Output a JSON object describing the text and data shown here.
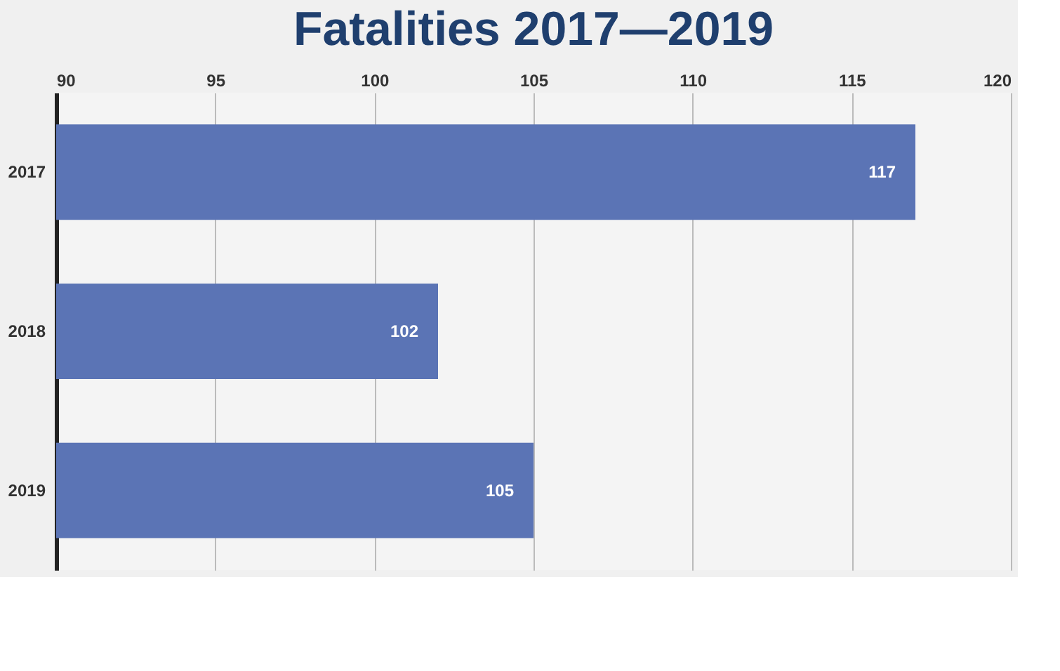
{
  "chart_data": {
    "type": "bar",
    "orientation": "horizontal",
    "title": "Fatalities 2017—2019",
    "categories": [
      "2017",
      "2018",
      "2019"
    ],
    "values": [
      117,
      102,
      105
    ],
    "color": "#5b74b5",
    "xlim": [
      90,
      120
    ],
    "xticks": [
      90,
      95,
      100,
      105,
      110,
      115,
      120
    ],
    "grid": "x",
    "data_labels": true
  }
}
